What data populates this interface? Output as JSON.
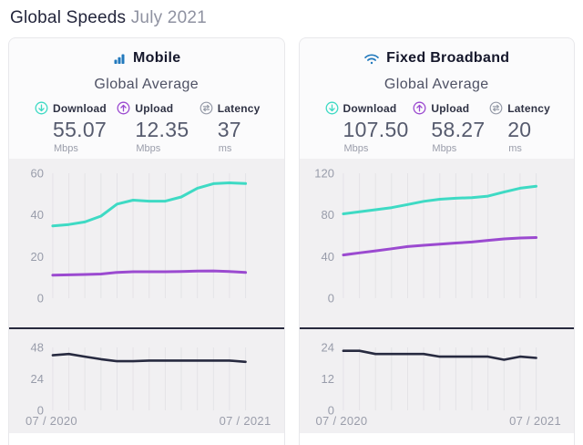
{
  "page": {
    "title": "Global Speeds",
    "subtitle": "July 2021"
  },
  "colors": {
    "accent_blue": "#2279bd",
    "download_teal": "#3edac4",
    "upload_purple": "#9b4ad0",
    "latency_navy": "#272a40",
    "chart_bg": "#f1f0f2",
    "gridline": "#e4e3e7",
    "tick_text": "#989caa"
  },
  "panels": [
    {
      "title": "Mobile",
      "icon": "bar-chart-icon",
      "section_title": "Global Average",
      "stats": [
        {
          "label": "Download",
          "value": "55.07",
          "unit": "Mbps",
          "icon": "download-arrow-icon",
          "color": "#3edac4"
        },
        {
          "label": "Upload",
          "value": "12.35",
          "unit": "Mbps",
          "icon": "upload-arrow-icon",
          "color": "#9b4ad0"
        },
        {
          "label": "Latency",
          "value": "37",
          "unit": "ms",
          "icon": "latency-icon",
          "color": "#979ca9"
        }
      ]
    },
    {
      "title": "Fixed Broadband",
      "icon": "wifi-icon",
      "section_title": "Global Average",
      "stats": [
        {
          "label": "Download",
          "value": "107.50",
          "unit": "Mbps",
          "icon": "download-arrow-icon",
          "color": "#3edac4"
        },
        {
          "label": "Upload",
          "value": "58.27",
          "unit": "Mbps",
          "icon": "upload-arrow-icon",
          "color": "#9b4ad0"
        },
        {
          "label": "Latency",
          "value": "20",
          "unit": "ms",
          "icon": "latency-icon",
          "color": "#979ca9"
        }
      ]
    }
  ],
  "chart_data": [
    {
      "type": "line",
      "panel": "Mobile",
      "name": "mobile-speeds",
      "x": [
        "07/2020",
        "08/2020",
        "09/2020",
        "10/2020",
        "11/2020",
        "12/2020",
        "01/2021",
        "02/2021",
        "03/2021",
        "04/2021",
        "05/2021",
        "06/2021",
        "07/2021"
      ],
      "x_tick_labels": [
        "07 / 2020",
        "07 / 2021"
      ],
      "ylim": [
        0,
        60
      ],
      "yticks": [
        60,
        40,
        20,
        0
      ],
      "grid": "vertical-monthly",
      "legend": "none",
      "series": [
        {
          "name": "Download (Mbps)",
          "color": "#3edac4",
          "width": 3,
          "values": [
            34.7,
            35.4,
            36.6,
            39.4,
            45.2,
            47.1,
            46.6,
            46.6,
            48.6,
            52.8,
            55.0,
            55.4,
            55.07
          ]
        },
        {
          "name": "Upload (Mbps)",
          "color": "#9b4ad0",
          "width": 3,
          "values": [
            11.1,
            11.2,
            11.4,
            11.6,
            12.4,
            12.7,
            12.7,
            12.7,
            12.8,
            13.0,
            13.1,
            12.8,
            12.35
          ]
        }
      ]
    },
    {
      "type": "line",
      "panel": "Mobile",
      "name": "mobile-latency",
      "x": [
        "07/2020",
        "08/2020",
        "09/2020",
        "10/2020",
        "11/2020",
        "12/2020",
        "01/2021",
        "02/2021",
        "03/2021",
        "04/2021",
        "05/2021",
        "06/2021",
        "07/2021"
      ],
      "x_tick_labels": [
        "07 / 2020",
        "07 / 2021"
      ],
      "ylim": [
        0,
        48
      ],
      "yticks": [
        48,
        24,
        0
      ],
      "grid": "vertical-monthly",
      "legend": "none",
      "series": [
        {
          "name": "Latency (ms)",
          "color": "#272a40",
          "width": 2.6,
          "values": [
            42,
            43,
            41,
            39,
            37.5,
            37.5,
            38,
            38,
            38,
            38,
            38,
            38,
            37
          ]
        }
      ]
    },
    {
      "type": "line",
      "panel": "Fixed Broadband",
      "name": "fixed-speeds",
      "x": [
        "07/2020",
        "08/2020",
        "09/2020",
        "10/2020",
        "11/2020",
        "12/2020",
        "01/2021",
        "02/2021",
        "03/2021",
        "04/2021",
        "05/2021",
        "06/2021",
        "07/2021"
      ],
      "x_tick_labels": [
        "07 / 2020",
        "07 / 2021"
      ],
      "ylim": [
        0,
        120
      ],
      "yticks": [
        120,
        80,
        40,
        0
      ],
      "grid": "vertical-monthly",
      "legend": "none",
      "series": [
        {
          "name": "Download (Mbps)",
          "color": "#3edac4",
          "width": 3,
          "values": [
            81,
            83,
            85,
            87,
            90,
            93,
            95,
            96,
            96.6,
            98,
            102,
            105.6,
            107.5
          ]
        },
        {
          "name": "Upload (Mbps)",
          "color": "#9b4ad0",
          "width": 3,
          "values": [
            41.5,
            43.5,
            45.5,
            47.5,
            49.6,
            50.8,
            51.9,
            53,
            54,
            55.5,
            56.9,
            57.8,
            58.27
          ]
        }
      ]
    },
    {
      "type": "line",
      "panel": "Fixed Broadband",
      "name": "fixed-latency",
      "x": [
        "07/2020",
        "08/2020",
        "09/2020",
        "10/2020",
        "11/2020",
        "12/2020",
        "01/2021",
        "02/2021",
        "03/2021",
        "04/2021",
        "05/2021",
        "06/2021",
        "07/2021"
      ],
      "x_tick_labels": [
        "07 / 2020",
        "07 / 2021"
      ],
      "ylim": [
        0,
        24
      ],
      "yticks": [
        24,
        12,
        0
      ],
      "grid": "vertical-monthly",
      "legend": "none",
      "series": [
        {
          "name": "Latency (ms)",
          "color": "#272a40",
          "width": 2.6,
          "values": [
            22.7,
            22.7,
            21.5,
            21.5,
            21.5,
            21.5,
            20.5,
            20.5,
            20.5,
            20.5,
            19.3,
            20.5,
            20
          ]
        }
      ]
    }
  ]
}
